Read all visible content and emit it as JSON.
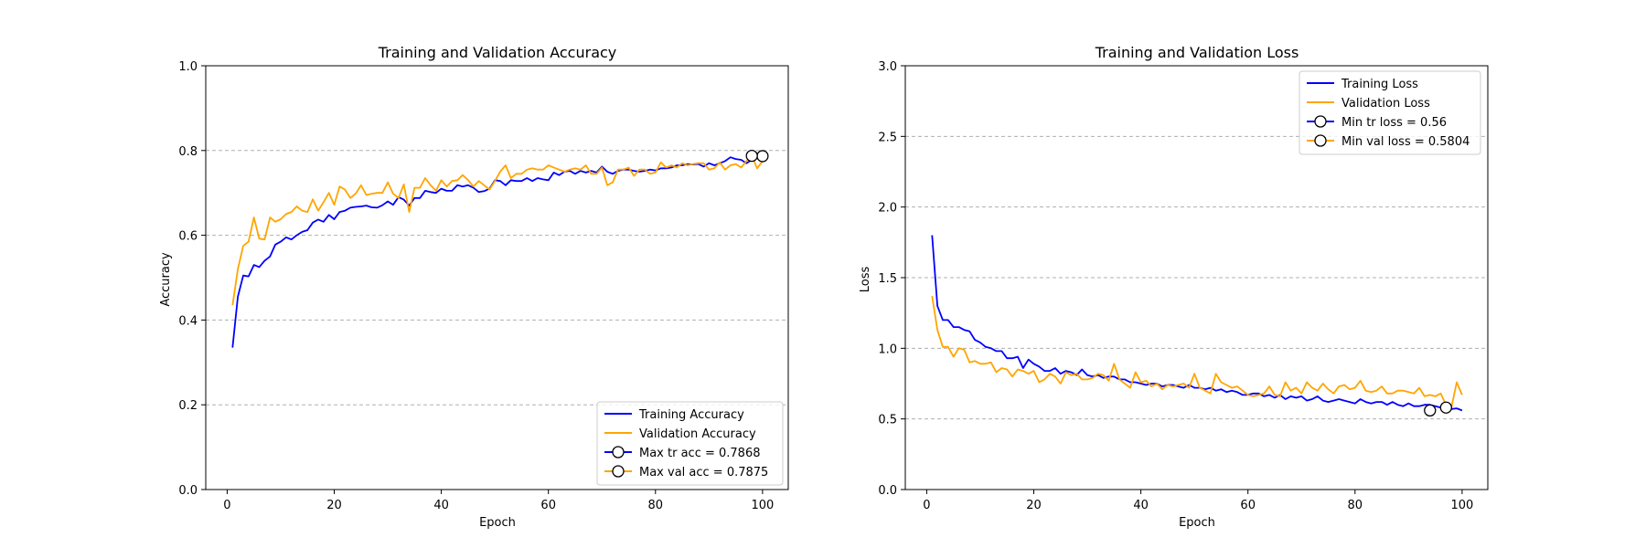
{
  "chart_data": [
    {
      "type": "line",
      "title": "Training and Validation Accuracy",
      "xlabel": "Epoch",
      "ylabel": "Accuracy",
      "xlim": [
        -4,
        104.8
      ],
      "ylim": [
        0.0,
        1.0
      ],
      "xticks": [
        "0",
        "20",
        "40",
        "60",
        "80",
        "100"
      ],
      "yticks": [
        "0.0",
        "0.2",
        "0.4",
        "0.6",
        "0.8",
        "1.0"
      ],
      "grid": "y-dashed",
      "legend_position": "bottom-right",
      "x": [
        1,
        2,
        3,
        4,
        5,
        6,
        7,
        8,
        9,
        10,
        11,
        12,
        13,
        14,
        15,
        16,
        17,
        18,
        19,
        20,
        21,
        22,
        23,
        24,
        25,
        26,
        27,
        28,
        29,
        30,
        31,
        32,
        33,
        34,
        35,
        36,
        37,
        38,
        39,
        40,
        41,
        42,
        43,
        44,
        45,
        46,
        47,
        48,
        49,
        50,
        51,
        52,
        53,
        54,
        55,
        56,
        57,
        58,
        59,
        60,
        61,
        62,
        63,
        64,
        65,
        66,
        67,
        68,
        69,
        70,
        71,
        72,
        73,
        74,
        75,
        76,
        77,
        78,
        79,
        80,
        81,
        82,
        83,
        84,
        85,
        86,
        87,
        88,
        89,
        90,
        91,
        92,
        93,
        94,
        95,
        96,
        97,
        98,
        99,
        100
      ],
      "series": [
        {
          "name": "Training Accuracy",
          "color": "#0000ff",
          "values": [
            0.335,
            0.455,
            0.505,
            0.503,
            0.53,
            0.525,
            0.54,
            0.55,
            0.578,
            0.585,
            0.595,
            0.59,
            0.6,
            0.608,
            0.612,
            0.63,
            0.637,
            0.632,
            0.648,
            0.638,
            0.655,
            0.658,
            0.665,
            0.667,
            0.668,
            0.67,
            0.666,
            0.665,
            0.671,
            0.68,
            0.672,
            0.69,
            0.684,
            0.67,
            0.688,
            0.688,
            0.705,
            0.702,
            0.7,
            0.71,
            0.705,
            0.705,
            0.718,
            0.715,
            0.718,
            0.712,
            0.702,
            0.704,
            0.71,
            0.73,
            0.728,
            0.718,
            0.73,
            0.728,
            0.728,
            0.735,
            0.728,
            0.735,
            0.732,
            0.73,
            0.748,
            0.742,
            0.75,
            0.752,
            0.745,
            0.752,
            0.748,
            0.752,
            0.748,
            0.762,
            0.75,
            0.745,
            0.752,
            0.755,
            0.755,
            0.752,
            0.75,
            0.752,
            0.755,
            0.753,
            0.758,
            0.758,
            0.76,
            0.765,
            0.765,
            0.768,
            0.767,
            0.768,
            0.762,
            0.77,
            0.765,
            0.77,
            0.775,
            0.784,
            0.78,
            0.778,
            0.77,
            0.778,
            0.785,
            0.7868
          ]
        },
        {
          "name": "Validation Accuracy",
          "color": "#ffa500",
          "values": [
            0.435,
            0.52,
            0.575,
            0.585,
            0.642,
            0.592,
            0.59,
            0.642,
            0.632,
            0.638,
            0.65,
            0.655,
            0.668,
            0.658,
            0.655,
            0.685,
            0.658,
            0.678,
            0.7,
            0.672,
            0.715,
            0.708,
            0.688,
            0.698,
            0.718,
            0.695,
            0.698,
            0.7,
            0.7,
            0.725,
            0.698,
            0.688,
            0.72,
            0.655,
            0.712,
            0.712,
            0.735,
            0.718,
            0.705,
            0.73,
            0.715,
            0.728,
            0.73,
            0.742,
            0.73,
            0.715,
            0.728,
            0.718,
            0.708,
            0.728,
            0.75,
            0.765,
            0.735,
            0.745,
            0.745,
            0.755,
            0.758,
            0.755,
            0.755,
            0.765,
            0.76,
            0.755,
            0.75,
            0.755,
            0.758,
            0.755,
            0.765,
            0.745,
            0.745,
            0.76,
            0.718,
            0.725,
            0.755,
            0.755,
            0.76,
            0.74,
            0.755,
            0.755,
            0.745,
            0.748,
            0.772,
            0.76,
            0.765,
            0.76,
            0.77,
            0.765,
            0.768,
            0.77,
            0.77,
            0.755,
            0.758,
            0.772,
            0.755,
            0.765,
            0.768,
            0.76,
            0.775,
            0.7875,
            0.758,
            0.775
          ]
        }
      ],
      "markers": [
        {
          "label": "Max tr acc = 0.7868",
          "x": 100,
          "y": 0.7868,
          "color": "#0000ff"
        },
        {
          "label": "Max val acc = 0.7875",
          "x": 98,
          "y": 0.7875,
          "color": "#ffa500"
        }
      ]
    },
    {
      "type": "line",
      "title": "Training and Validation Loss",
      "xlabel": "Epoch",
      "ylabel": "Loss",
      "xlim": [
        -4,
        104.8
      ],
      "ylim": [
        0.0,
        3.0
      ],
      "xticks": [
        "0",
        "20",
        "40",
        "60",
        "80",
        "100"
      ],
      "yticks": [
        "0.0",
        "0.5",
        "1.0",
        "1.5",
        "2.0",
        "2.5",
        "3.0"
      ],
      "grid": "y-dashed",
      "legend_position": "top-right",
      "x": [
        1,
        2,
        3,
        4,
        5,
        6,
        7,
        8,
        9,
        10,
        11,
        12,
        13,
        14,
        15,
        16,
        17,
        18,
        19,
        20,
        21,
        22,
        23,
        24,
        25,
        26,
        27,
        28,
        29,
        30,
        31,
        32,
        33,
        34,
        35,
        36,
        37,
        38,
        39,
        40,
        41,
        42,
        43,
        44,
        45,
        46,
        47,
        48,
        49,
        50,
        51,
        52,
        53,
        54,
        55,
        56,
        57,
        58,
        59,
        60,
        61,
        62,
        63,
        64,
        65,
        66,
        67,
        68,
        69,
        70,
        71,
        72,
        73,
        74,
        75,
        76,
        77,
        78,
        79,
        80,
        81,
        82,
        83,
        84,
        85,
        86,
        87,
        88,
        89,
        90,
        91,
        92,
        93,
        94,
        95,
        96,
        97,
        98,
        99,
        100
      ],
      "series": [
        {
          "name": "Training Loss",
          "color": "#0000ff",
          "values": [
            1.8,
            1.3,
            1.2,
            1.2,
            1.15,
            1.15,
            1.13,
            1.12,
            1.06,
            1.04,
            1.01,
            1.0,
            0.98,
            0.98,
            0.93,
            0.93,
            0.94,
            0.86,
            0.92,
            0.89,
            0.87,
            0.84,
            0.84,
            0.86,
            0.82,
            0.84,
            0.83,
            0.81,
            0.85,
            0.81,
            0.8,
            0.81,
            0.79,
            0.8,
            0.8,
            0.78,
            0.78,
            0.76,
            0.76,
            0.75,
            0.74,
            0.75,
            0.75,
            0.73,
            0.74,
            0.74,
            0.73,
            0.72,
            0.74,
            0.72,
            0.72,
            0.71,
            0.72,
            0.7,
            0.71,
            0.69,
            0.7,
            0.69,
            0.67,
            0.67,
            0.68,
            0.68,
            0.66,
            0.67,
            0.65,
            0.67,
            0.64,
            0.66,
            0.65,
            0.66,
            0.63,
            0.64,
            0.66,
            0.63,
            0.62,
            0.63,
            0.64,
            0.63,
            0.62,
            0.61,
            0.64,
            0.62,
            0.61,
            0.62,
            0.62,
            0.6,
            0.62,
            0.6,
            0.59,
            0.61,
            0.59,
            0.59,
            0.6,
            0.6,
            0.59,
            0.58,
            0.58,
            0.57,
            0.575,
            0.56
          ]
        },
        {
          "name": "Validation Loss",
          "color": "#ffa500",
          "values": [
            1.37,
            1.13,
            1.01,
            1.01,
            0.94,
            1.0,
            0.99,
            0.9,
            0.91,
            0.89,
            0.89,
            0.9,
            0.83,
            0.86,
            0.85,
            0.8,
            0.85,
            0.84,
            0.82,
            0.84,
            0.76,
            0.78,
            0.82,
            0.8,
            0.75,
            0.83,
            0.81,
            0.82,
            0.78,
            0.78,
            0.79,
            0.82,
            0.81,
            0.77,
            0.89,
            0.78,
            0.75,
            0.72,
            0.83,
            0.76,
            0.77,
            0.73,
            0.75,
            0.71,
            0.74,
            0.73,
            0.74,
            0.75,
            0.72,
            0.82,
            0.72,
            0.7,
            0.68,
            0.82,
            0.76,
            0.74,
            0.72,
            0.73,
            0.7,
            0.67,
            0.66,
            0.67,
            0.68,
            0.73,
            0.67,
            0.66,
            0.76,
            0.7,
            0.72,
            0.68,
            0.76,
            0.72,
            0.7,
            0.75,
            0.71,
            0.68,
            0.73,
            0.74,
            0.71,
            0.72,
            0.77,
            0.7,
            0.69,
            0.7,
            0.73,
            0.68,
            0.68,
            0.7,
            0.7,
            0.69,
            0.68,
            0.72,
            0.66,
            0.67,
            0.66,
            0.68,
            0.6,
            0.5804,
            0.76,
            0.67
          ]
        }
      ],
      "markers": [
        {
          "label": "Min tr loss = 0.56",
          "x": 94,
          "y": 0.56,
          "color": "#0000ff"
        },
        {
          "label": "Min val loss = 0.5804",
          "x": 97,
          "y": 0.5804,
          "color": "#ffa500"
        }
      ]
    }
  ]
}
